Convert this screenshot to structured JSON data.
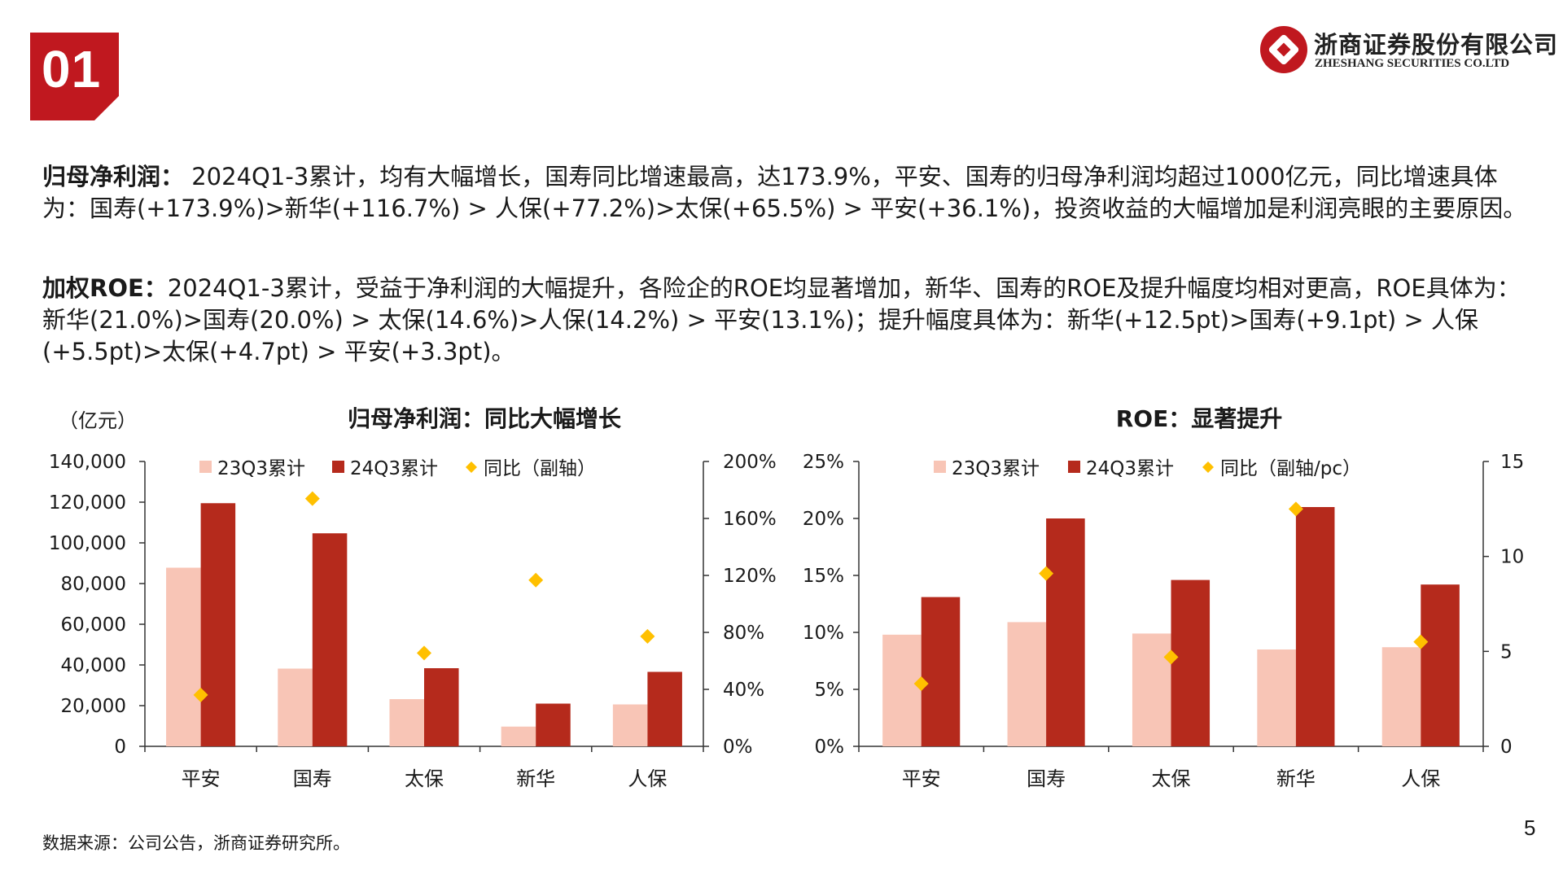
{
  "header": {
    "section_number": "01",
    "logo_cn": "浙商证券股份有限公司",
    "logo_en": "ZHESHANG SECURITIES CO.LTD",
    "logo_icon": "zheshang-logo-icon",
    "brand_color": "#c0181f"
  },
  "body": {
    "p1_label": "归母净利润：",
    "p1_text": " 2024Q1-3累计，均有大幅增长，国寿同比增速最高，达173.9%，平安、国寿的归母净利润均超过1000亿元，同比增速具体为：国寿(+173.9%)>新华(+116.7%) > 人保(+77.2%)>太保(+65.5%) > 平安(+36.1%)，投资收益的大幅增加是利润亮眼的主要原因。",
    "p2_label": "加权ROE：",
    "p2_text": "2024Q1-3累计，受益于净利润的大幅提升，各险企的ROE均显著增加，新华、国寿的ROE及提升幅度均相对更高，ROE具体为：新华(21.0%)>国寿(20.0%) > 太保(14.6%)>人保(14.2%) > 平安(13.1%)；提升幅度具体为：新华(+12.5pt)>国寿(+9.1pt) > 人保(+5.5pt)>太保(+4.7pt) > 平安(+3.3pt)。"
  },
  "footer": {
    "source": "数据来源：公司公告，浙商证券研究所。",
    "page": "5"
  },
  "chart_data": [
    {
      "type": "bar",
      "title": "归母净利润：同比大幅增长",
      "unit_label": "（亿元）",
      "categories": [
        "平安",
        "国寿",
        "太保",
        "新华",
        "人保"
      ],
      "series": [
        {
          "name": "23Q3累计",
          "type": "bar",
          "axis": "left",
          "color": "#f8c5b6",
          "values": [
            87800,
            38200,
            23200,
            9700,
            20600
          ]
        },
        {
          "name": "24Q3累计",
          "type": "bar",
          "axis": "left",
          "color": "#b52a1c",
          "values": [
            119500,
            104700,
            38400,
            21000,
            36600
          ]
        },
        {
          "name": "同比（副轴）",
          "type": "scatter",
          "axis": "right",
          "color": "#ffc000",
          "marker": "diamond",
          "values": [
            36.1,
            173.9,
            65.5,
            116.7,
            77.2
          ]
        }
      ],
      "y_left": {
        "min": 0,
        "max": 140000,
        "ticks": [
          "0",
          "20,000",
          "40,000",
          "60,000",
          "80,000",
          "100,000",
          "120,000",
          "140,000"
        ],
        "tick_values": [
          0,
          20000,
          40000,
          60000,
          80000,
          100000,
          120000,
          140000
        ]
      },
      "y_right": {
        "min": 0,
        "max": 200,
        "ticks": [
          "0%",
          "40%",
          "80%",
          "120%",
          "160%",
          "200%"
        ],
        "tick_values": [
          0,
          40,
          80,
          120,
          160,
          200
        ]
      },
      "legend_position": "top",
      "grid": false
    },
    {
      "type": "bar",
      "title": "ROE：显著提升",
      "categories": [
        "平安",
        "国寿",
        "太保",
        "新华",
        "人保"
      ],
      "series": [
        {
          "name": "23Q3累计",
          "type": "bar",
          "axis": "left",
          "color": "#f8c5b6",
          "values": [
            9.8,
            10.9,
            9.9,
            8.5,
            8.7
          ]
        },
        {
          "name": "24Q3累计",
          "type": "bar",
          "axis": "left",
          "color": "#b52a1c",
          "values": [
            13.1,
            20.0,
            14.6,
            21.0,
            14.2
          ]
        },
        {
          "name": "同比（副轴/pc）",
          "type": "scatter",
          "axis": "right",
          "color": "#ffc000",
          "marker": "diamond",
          "values": [
            3.3,
            9.1,
            4.7,
            12.5,
            5.5
          ]
        }
      ],
      "y_left": {
        "min": 0,
        "max": 25,
        "ticks": [
          "0%",
          "5%",
          "10%",
          "15%",
          "20%",
          "25%"
        ],
        "tick_values": [
          0,
          5,
          10,
          15,
          20,
          25
        ]
      },
      "y_right": {
        "min": 0,
        "max": 15,
        "ticks": [
          "0",
          "5",
          "10",
          "15"
        ],
        "tick_values": [
          0,
          5,
          10,
          15
        ]
      },
      "legend_position": "top",
      "grid": false
    }
  ]
}
